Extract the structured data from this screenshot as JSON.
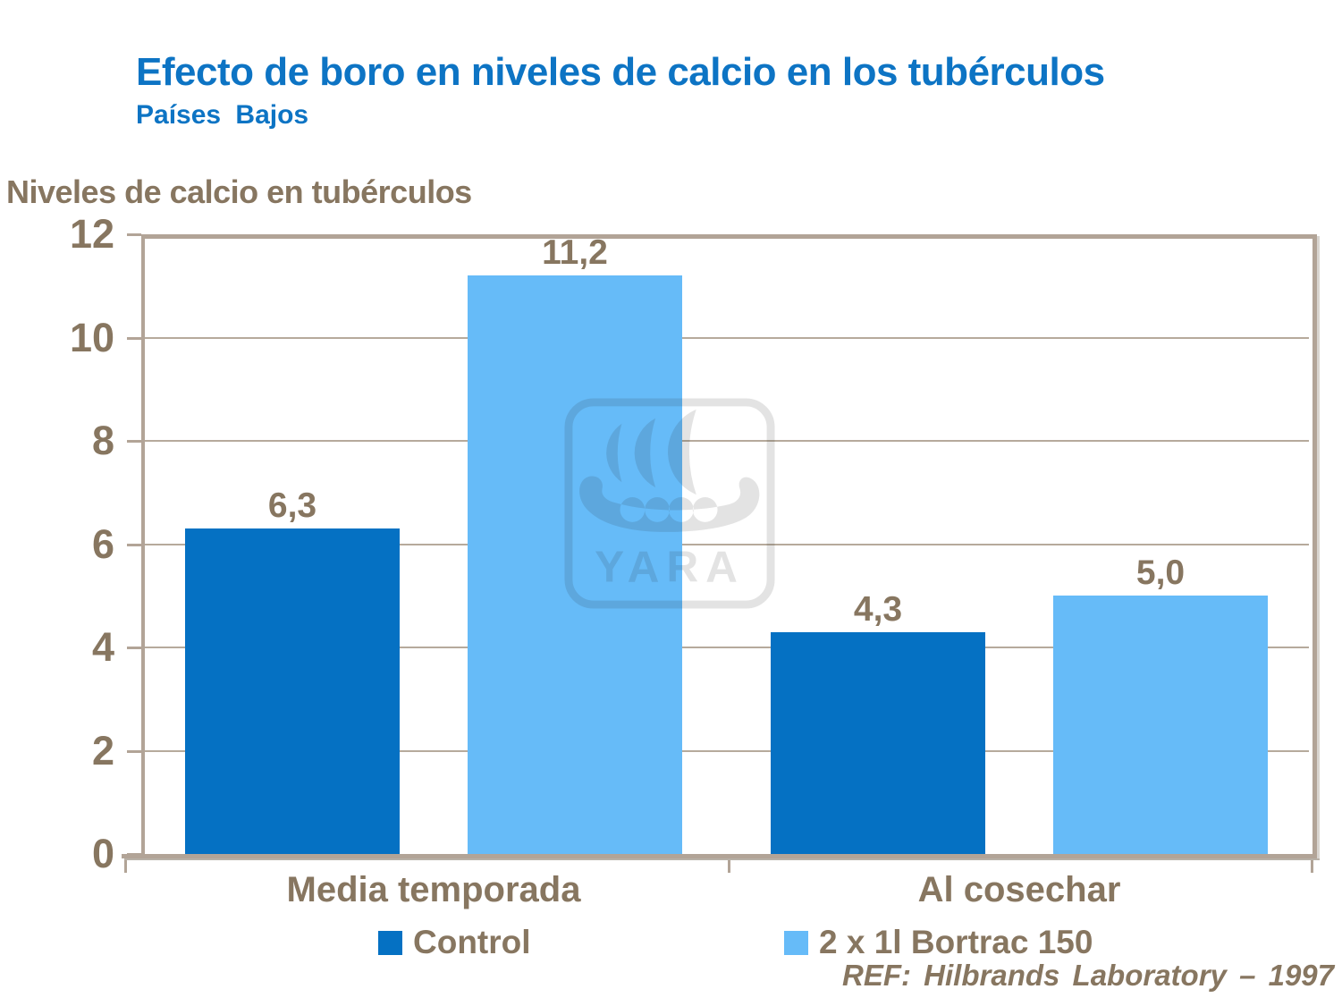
{
  "title": "Efecto de boro en niveles de calcio en los tubérculos",
  "subtitle": "Países Bajos",
  "chart_heading": "Niveles de calcio en tubérculos",
  "chart_data": {
    "type": "bar",
    "title": "Niveles de calcio en tubérculos",
    "categories": [
      "Media temporada",
      "Al cosechar"
    ],
    "series": [
      {
        "name": "Control",
        "values": [
          6.3,
          4.3
        ],
        "labels": [
          "6,3",
          "4,3"
        ],
        "color": "#0571c3"
      },
      {
        "name": "2 x 1l Bortrac 150",
        "values": [
          11.2,
          5.0
        ],
        "labels": [
          "11,2",
          "5,0"
        ],
        "color": "#66bbf8"
      }
    ],
    "xlabel": "",
    "ylabel": "",
    "ylim": [
      0,
      12
    ],
    "yticks": [
      0,
      2,
      4,
      6,
      8,
      10,
      12
    ],
    "grid": true,
    "legend_position": "bottom"
  },
  "footer": {
    "reference": "REF: Hilbrands Laboratory – 1997"
  },
  "watermark": {
    "text": "YARA"
  },
  "colors": {
    "title_blue": "#0d74c4",
    "brown": "#877660",
    "frame": "#b2a497",
    "grid": "#b6aa9c",
    "control_bar": "#0571c3",
    "bortrac_bar": "#66bbf8"
  }
}
